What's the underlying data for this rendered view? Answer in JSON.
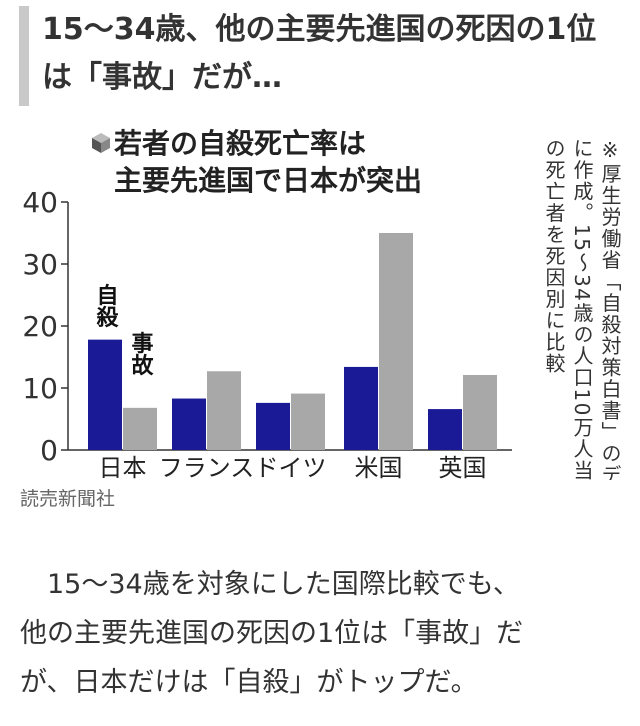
{
  "headline": "15〜34歳、他の主要先進国の死因の1位は「事故」だが…",
  "chart_data": {
    "type": "bar",
    "title_lines": [
      "若者の自殺死亡率は",
      "主要先進国で日本が突出"
    ],
    "note": "※厚生労働省「自殺対策白書」のデータを基に作成。15〜34歳の人口10万人当たりの死亡者を死因別に比較",
    "categories": [
      "日本",
      "フランス",
      "ドイツ",
      "米国",
      "英国"
    ],
    "series": [
      {
        "name": "自殺",
        "color": "#1a1a96",
        "values": [
          17.8,
          8.3,
          7.6,
          13.4,
          6.6
        ]
      },
      {
        "name": "事故",
        "color": "#a8a8a8",
        "values": [
          6.8,
          12.7,
          9.1,
          35.0,
          12.1
        ]
      }
    ],
    "yticks": [
      0,
      10,
      20,
      30,
      40
    ],
    "ylim": [
      0,
      40
    ],
    "legend_position": "on bars (日本)"
  },
  "credit": "読売新聞社",
  "body_lines": [
    "　15〜34歳を対象にした国際比較でも、",
    "他の主要先進国の死因の1位は「事故」だ",
    "が、日本だけは「自殺」がトップだ。"
  ]
}
